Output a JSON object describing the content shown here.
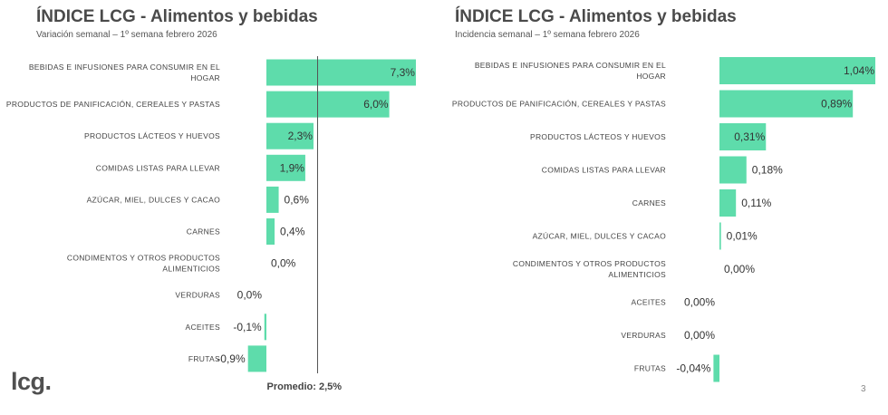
{
  "chart_data": [
    {
      "type": "bar",
      "orientation": "horizontal",
      "title": "ÍNDICE LCG - Alimentos y bebidas",
      "subtitle": "Variación semanal – 1º semana febrero 2026",
      "categories": [
        [
          "BEBIDAS E INFUSIONES PARA CONSUMIR EN EL",
          "HOGAR"
        ],
        [
          "PRODUCTOS DE PANIFICACIÓN, CEREALES Y PASTAS"
        ],
        [
          "PRODUCTOS LÁCTEOS Y HUEVOS"
        ],
        [
          "COMIDAS LISTAS PARA LLEVAR"
        ],
        [
          "AZÚCAR, MIEL, DULCES Y CACAO"
        ],
        [
          "CARNES"
        ],
        [
          "CONDIMENTOS Y OTROS PRODUCTOS",
          "ALIMENTICIOS"
        ],
        [
          "VERDURAS"
        ],
        [
          "ACEITES"
        ],
        [
          "FRUTAS"
        ]
      ],
      "values": [
        7.3,
        6.0,
        2.3,
        1.9,
        0.6,
        0.4,
        0.0,
        0.0,
        -0.1,
        -0.9
      ],
      "labels": [
        "7,3%",
        "6,0%",
        "2,3%",
        "1,9%",
        "0,6%",
        "0,4%",
        "0,0%",
        "0,0%",
        "-0,1%",
        "-0,9%"
      ],
      "reference_line": {
        "value": 2.5,
        "label": "Promedio: 2,5%"
      },
      "xlim": [
        -0.9,
        7.3
      ],
      "color": "#5edcab"
    },
    {
      "type": "bar",
      "orientation": "horizontal",
      "title": "ÍNDICE LCG - Alimentos y bebidas",
      "subtitle": "Incidencia semanal – 1º semana febrero 2026",
      "categories": [
        [
          "BEBIDAS E INFUSIONES PARA CONSUMIR EN EL",
          "HOGAR"
        ],
        [
          "PRODUCTOS DE PANIFICACIÓN, CEREALES Y PASTAS"
        ],
        [
          "PRODUCTOS LÁCTEOS Y HUEVOS"
        ],
        [
          "COMIDAS LISTAS PARA LLEVAR"
        ],
        [
          "CARNES"
        ],
        [
          "AZÚCAR, MIEL, DULCES Y CACAO"
        ],
        [
          "CONDIMENTOS Y OTROS PRODUCTOS",
          "ALIMENTICIOS"
        ],
        [
          "ACEITES"
        ],
        [
          "VERDURAS"
        ],
        [
          "FRUTAS"
        ]
      ],
      "values": [
        1.04,
        0.89,
        0.31,
        0.18,
        0.11,
        0.01,
        0.0,
        0.0,
        0.0,
        -0.04
      ],
      "labels": [
        "1,04%",
        "0,89%",
        "0,31%",
        "0,18%",
        "0,11%",
        "0,01%",
        "0,00%",
        "0,00%",
        "0,00%",
        "-0,04%"
      ],
      "xlim": [
        -0.04,
        1.04
      ],
      "color": "#5edcab"
    }
  ],
  "footer": {
    "logo": "lcg.",
    "page_number": "3"
  }
}
